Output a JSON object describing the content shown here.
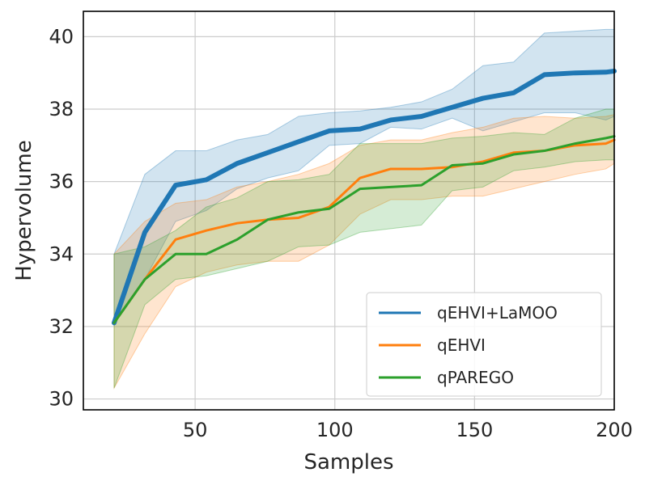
{
  "chart_data": {
    "type": "line",
    "title": "",
    "xlabel": "Samples",
    "ylabel": "Hypervolume",
    "xlim": [
      10,
      200
    ],
    "ylim": [
      29.7,
      40.7
    ],
    "xticks": [
      50,
      100,
      150,
      200
    ],
    "yticks": [
      30,
      32,
      34,
      36,
      38,
      40
    ],
    "grid": true,
    "legend_position": "lower-right",
    "x": [
      21,
      32,
      43,
      54,
      65,
      76,
      87,
      98,
      109,
      120,
      131,
      142,
      153,
      164,
      175,
      186,
      197,
      200
    ],
    "series": [
      {
        "name": "qEHVI+LaMOO",
        "color": "#1f77b4",
        "values": [
          32.1,
          34.6,
          35.9,
          36.05,
          36.5,
          36.8,
          37.1,
          37.4,
          37.45,
          37.7,
          37.8,
          38.05,
          38.3,
          38.45,
          38.95,
          39.0,
          39.02,
          39.05
        ],
        "lower": [
          32.1,
          33.3,
          34.9,
          35.2,
          35.8,
          36.1,
          36.3,
          37.0,
          37.05,
          37.5,
          37.45,
          37.75,
          37.4,
          37.65,
          37.9,
          37.9,
          37.7,
          37.8
        ],
        "upper": [
          34.0,
          36.2,
          36.85,
          36.85,
          37.15,
          37.3,
          37.8,
          37.9,
          37.95,
          38.05,
          38.2,
          38.55,
          39.2,
          39.3,
          40.1,
          40.15,
          40.2,
          40.2
        ]
      },
      {
        "name": "qEHVI",
        "color": "#ff7f0e",
        "values": [
          32.1,
          33.3,
          34.4,
          34.65,
          34.85,
          34.95,
          35.0,
          35.3,
          36.1,
          36.35,
          36.35,
          36.4,
          36.55,
          36.8,
          36.85,
          37.0,
          37.05,
          37.15
        ],
        "lower": [
          30.3,
          31.8,
          33.1,
          33.5,
          33.7,
          33.8,
          33.8,
          34.25,
          35.1,
          35.5,
          35.5,
          35.6,
          35.6,
          35.8,
          36.0,
          36.2,
          36.35,
          36.5
        ],
        "upper": [
          34.0,
          34.9,
          35.4,
          35.5,
          35.85,
          36.0,
          36.2,
          36.5,
          37.0,
          37.15,
          37.15,
          37.35,
          37.5,
          37.75,
          37.8,
          37.75,
          37.8,
          37.85
        ]
      },
      {
        "name": "qPAREGO",
        "color": "#2ca02c",
        "values": [
          32.1,
          33.3,
          34.0,
          34.0,
          34.4,
          34.95,
          35.15,
          35.25,
          35.8,
          35.85,
          35.9,
          36.45,
          36.5,
          36.75,
          36.85,
          37.05,
          37.2,
          37.25
        ],
        "lower": [
          30.3,
          32.6,
          33.3,
          33.4,
          33.6,
          33.8,
          34.2,
          34.25,
          34.6,
          34.7,
          34.8,
          35.75,
          35.85,
          36.3,
          36.4,
          36.55,
          36.6,
          36.6
        ],
        "upper": [
          34.0,
          34.2,
          34.65,
          35.3,
          35.55,
          36.0,
          36.05,
          36.2,
          37.05,
          37.05,
          37.05,
          37.2,
          37.25,
          37.35,
          37.3,
          37.75,
          38.0,
          38.0
        ]
      }
    ]
  }
}
